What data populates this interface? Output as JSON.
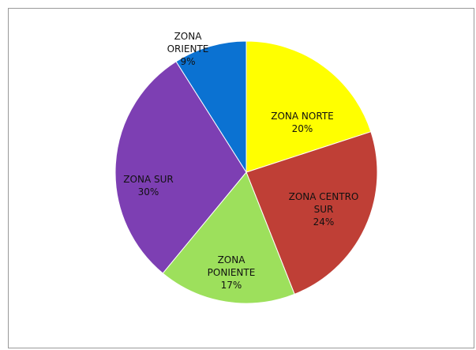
{
  "chart_data": {
    "type": "pie",
    "categories": [
      "ZONA NORTE",
      "ZONA CENTRO SUR",
      "ZONA PONIENTE",
      "ZONA SUR",
      "ZONA ORIENTE"
    ],
    "values": [
      20,
      24,
      17,
      30,
      9
    ],
    "value_labels": [
      "20%",
      "24%",
      "17%",
      "30%",
      "9%"
    ],
    "colors": [
      "#ffff00",
      "#bf3f36",
      "#9de05c",
      "#7d3fb3",
      "#0b72d2"
    ]
  }
}
